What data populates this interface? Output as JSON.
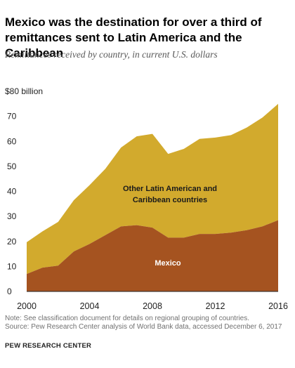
{
  "title": "Mexico was the destination for over a third of remittances sent to Latin America and the Caribbean",
  "subtitle": "Remittances received by country, in current U.S. dollars",
  "notes": {
    "note": "Note: See classification document for details on regional grouping of countries.",
    "source": "Source: Pew Research Center analysis of World Bank data, accessed December 6, 2017"
  },
  "branding": "PEW RESEARCH CENTER",
  "colors": {
    "mexico": "#a55320",
    "other": "#d2aa2d"
  },
  "chart_data": {
    "type": "area",
    "stacked": true,
    "x": [
      2000,
      2001,
      2002,
      2003,
      2004,
      2005,
      2006,
      2007,
      2008,
      2009,
      2010,
      2011,
      2012,
      2013,
      2014,
      2015,
      2016
    ],
    "series": [
      {
        "name": "Mexico",
        "values": [
          7,
          9.5,
          10.3,
          16,
          19,
          22.5,
          26,
          26.5,
          25.5,
          21.5,
          21.5,
          23,
          23,
          23.5,
          24.5,
          26,
          28.5
        ]
      },
      {
        "name": "Other Latin American and Caribbean countries",
        "values": [
          12.7,
          14.5,
          17.5,
          20.5,
          23.5,
          26.5,
          31.5,
          35.5,
          37.5,
          33.5,
          35.5,
          38,
          38.5,
          39,
          41,
          43.5,
          46.5
        ]
      }
    ],
    "xticks": [
      "2000",
      "2004",
      "2008",
      "2012",
      "2016"
    ],
    "yticks": [
      "0",
      "10",
      "20",
      "30",
      "40",
      "50",
      "60",
      "70",
      "$80 billion"
    ],
    "ylim": [
      0,
      80
    ],
    "xlim": [
      2000,
      2016
    ],
    "grid": false
  }
}
